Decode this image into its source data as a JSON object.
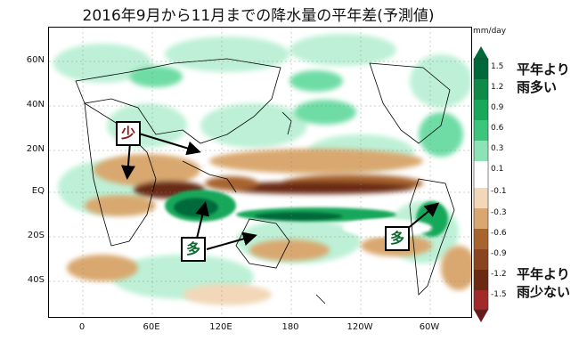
{
  "title": "2016年9月から11月までの降水量の平年差(予測値)",
  "map": {
    "lat_labels": [
      "60N",
      "40N",
      "20N",
      "EQ",
      "20S",
      "40S"
    ],
    "lon_labels": [
      "0",
      "60E",
      "120E",
      "180",
      "120W",
      "60W"
    ]
  },
  "colorbar": {
    "units": "mm/day",
    "ticks": [
      "1.5",
      "1.2",
      "0.9",
      "0.6",
      "0.3",
      "0.1",
      "-0.1",
      "-0.3",
      "-0.6",
      "-0.9",
      "-1.2",
      "-1.5"
    ],
    "colors": {
      "wet_strong": "#00693a",
      "wet_mid": "#18a85a",
      "wet_light": "#5fd99b",
      "wet_faint": "#b6efd2",
      "neutral": "#ffffff",
      "dry_faint": "#f2d8b8",
      "dry_light": "#d9a870",
      "dry_mid": "#a8642e",
      "dry_strong": "#6b2a12"
    }
  },
  "legend": {
    "wet_label": "平年より\n雨多い",
    "dry_label": "平年より\n雨少ない"
  },
  "callouts": {
    "less": "少",
    "more_left": "多",
    "more_right": "多"
  }
}
